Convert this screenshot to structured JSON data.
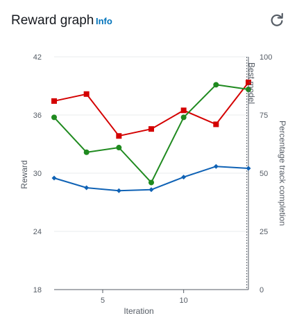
{
  "header": {
    "title": "Reward graph",
    "info_label": "Info",
    "refresh_icon": "refresh-icon"
  },
  "chart_data": {
    "type": "line",
    "xlabel": "Iteration",
    "ylabel": "Reward",
    "y2label": "Percentage track completion",
    "xlim": [
      2,
      14
    ],
    "ylim": [
      18,
      42
    ],
    "y2lim": [
      0,
      100
    ],
    "x_ticks": [
      5,
      10
    ],
    "y_ticks": [
      18,
      24,
      30,
      36,
      42
    ],
    "y2_ticks": [
      0,
      25,
      50,
      75,
      100
    ],
    "grid": true,
    "annotations": [
      {
        "text": "Best model",
        "x": 13.9
      }
    ],
    "series": [
      {
        "color": "#d40000",
        "marker": "square",
        "axis": "right",
        "x": [
          2,
          4,
          6,
          8,
          10,
          12,
          14
        ],
        "values": [
          81,
          84,
          66,
          69,
          77,
          71,
          89
        ]
      },
      {
        "color": "#1f8a1f",
        "marker": "circle",
        "axis": "right",
        "x": [
          2,
          4,
          6,
          8,
          10,
          12,
          14
        ],
        "values": [
          74,
          59,
          61,
          46,
          74,
          88,
          86
        ]
      },
      {
        "color": "#0f62b5",
        "marker": "diamond",
        "axis": "left",
        "x": [
          2,
          4,
          6,
          8,
          10,
          12,
          14
        ],
        "values": [
          29.5,
          28.5,
          28.2,
          28.3,
          29.6,
          30.7,
          30.5
        ]
      }
    ]
  }
}
